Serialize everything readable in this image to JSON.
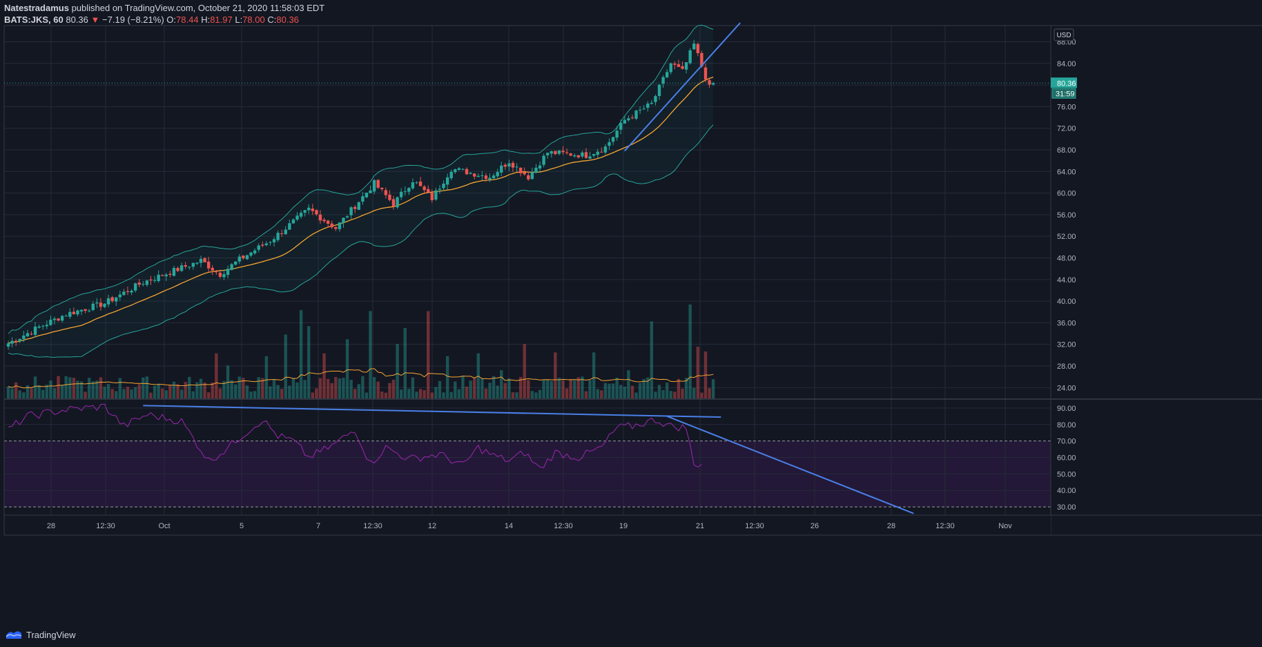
{
  "header": {
    "publisher": "Natestradamus",
    "published_text": "published on TradingView.com, October 21, 2020 11:58:03 EDT",
    "symbol": "BATS:JKS, 60",
    "last": "80.36",
    "arrow": "▼",
    "change": "−7.19 (−8.21%)",
    "o_label": "O:",
    "o_value": "78.44",
    "h_label": "H:",
    "h_value": "81.97",
    "l_label": "L:",
    "l_value": "78.00",
    "c_label": "C:",
    "c_value": "80.36"
  },
  "footer": {
    "brand": "TradingView"
  },
  "colors": {
    "up": "#26a69a",
    "down": "#ef5350",
    "ma": "#f7a633",
    "bb": "#26a69a",
    "rsi": "#9c27b0",
    "trendline": "#4a80e8",
    "bg": "#131722",
    "grid": "#262b3a"
  },
  "chart_data": {
    "type": "candlestick",
    "currency_label": "USD",
    "last_price_label": "80.36",
    "countdown_label": "31:59",
    "price_axis": {
      "min": 22,
      "max": 91,
      "ticks": [
        "88.00",
        "84.00",
        "80.00",
        "76.00",
        "72.00",
        "68.00",
        "64.00",
        "60.00",
        "56.00",
        "52.00",
        "48.00",
        "44.00",
        "40.00",
        "36.00",
        "32.00",
        "28.00",
        "24.00"
      ]
    },
    "rsi_axis": {
      "min": 25,
      "max": 95,
      "ticks": [
        "90.00",
        "80.00",
        "70.00",
        "60.00",
        "50.00",
        "40.00",
        "30.00"
      ],
      "overbought": 70,
      "oversold": 30
    },
    "x_ticks": [
      "28",
      "12:30",
      "Oct",
      "5",
      "7",
      "12:30",
      "12",
      "14",
      "12:30",
      "19",
      "21",
      "12:30",
      "26",
      "28",
      "12:30",
      "Nov"
    ],
    "anchors": [
      [
        0,
        32.2
      ],
      [
        8,
        35.2
      ],
      [
        15,
        37.6
      ],
      [
        25,
        39.6
      ],
      [
        35,
        43.5
      ],
      [
        50,
        47.5
      ],
      [
        55,
        45.0
      ],
      [
        60,
        47.7
      ],
      [
        68,
        51.2
      ],
      [
        78,
        57.0
      ],
      [
        85,
        53.5
      ],
      [
        95,
        61.8
      ],
      [
        100,
        58.0
      ],
      [
        105,
        62.4
      ],
      [
        110,
        59.0
      ],
      [
        115,
        64.5
      ],
      [
        125,
        63.0
      ],
      [
        130,
        65.9
      ],
      [
        135,
        63.0
      ],
      [
        140,
        67.5
      ],
      [
        150,
        67.0
      ],
      [
        155,
        68.5
      ],
      [
        160,
        73.5
      ],
      [
        167,
        76.5
      ],
      [
        172,
        84.0
      ],
      [
        175,
        82.5
      ],
      [
        178,
        87.5
      ],
      [
        180,
        83.5
      ],
      [
        182,
        79.5
      ],
      [
        183,
        80.36
      ]
    ],
    "volume_bars": 183,
    "volume_spikes": [
      [
        5,
        0.14
      ],
      [
        17,
        0.22
      ],
      [
        54,
        0.48
      ],
      [
        57,
        0.35
      ],
      [
        67,
        0.45
      ],
      [
        72,
        0.68
      ],
      [
        76,
        0.94
      ],
      [
        78,
        0.77
      ],
      [
        82,
        0.48
      ],
      [
        88,
        0.63
      ],
      [
        94,
        0.93
      ],
      [
        101,
        0.58
      ],
      [
        103,
        0.75
      ],
      [
        109,
        0.93
      ],
      [
        114,
        0.45
      ],
      [
        122,
        0.48
      ],
      [
        128,
        0.3
      ],
      [
        134,
        0.58
      ],
      [
        142,
        0.49
      ],
      [
        152,
        0.49
      ],
      [
        161,
        0.3
      ],
      [
        167,
        0.82
      ],
      [
        176,
        0.22
      ],
      [
        177,
        1.0
      ],
      [
        179,
        0.55
      ],
      [
        181,
        0.5
      ]
    ],
    "rsi_anchors": [
      [
        0,
        77
      ],
      [
        5,
        85
      ],
      [
        15,
        89
      ],
      [
        25,
        91
      ],
      [
        30,
        79
      ],
      [
        36,
        86
      ],
      [
        45,
        82
      ],
      [
        52,
        58
      ],
      [
        56,
        64
      ],
      [
        60,
        72
      ],
      [
        66,
        83
      ],
      [
        70,
        73
      ],
      [
        74,
        70
      ],
      [
        78,
        60
      ],
      [
        84,
        67
      ],
      [
        90,
        77
      ],
      [
        94,
        56
      ],
      [
        98,
        66
      ],
      [
        104,
        59
      ],
      [
        112,
        62
      ],
      [
        118,
        55
      ],
      [
        122,
        66
      ],
      [
        126,
        61
      ],
      [
        130,
        58
      ],
      [
        134,
        63
      ],
      [
        138,
        53
      ],
      [
        142,
        63
      ],
      [
        148,
        60
      ],
      [
        154,
        66
      ],
      [
        158,
        78
      ],
      [
        162,
        79
      ],
      [
        168,
        83
      ],
      [
        172,
        79
      ],
      [
        176,
        78
      ],
      [
        178,
        55
      ],
      [
        180,
        57
      ]
    ],
    "price_trendline": [
      [
        160,
        67.8
      ],
      [
        190,
        91.5
      ]
    ],
    "rsi_trendline_upper": [
      [
        35,
        91.5
      ],
      [
        185,
        84.5
      ]
    ],
    "rsi_trendline_lower": [
      [
        171,
        85
      ],
      [
        235,
        26
      ]
    ]
  }
}
